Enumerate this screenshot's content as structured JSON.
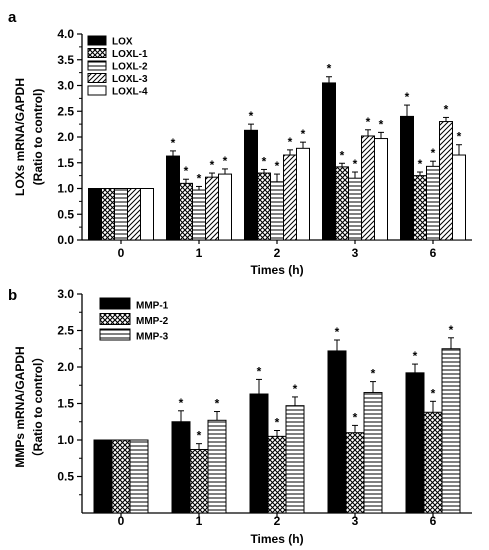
{
  "chart_data": [
    {
      "panel": "a",
      "type": "bar",
      "xlabel": "Times (h)",
      "ylabel_line1": "LOXs mRNA/GAPDH",
      "ylabel_line2": "(Ratio to control)",
      "categories": [
        "0",
        "1",
        "2",
        "3",
        "6"
      ],
      "ylim": [
        0,
        4.0
      ],
      "yticks": [
        "0.0",
        "0.5",
        "1.0",
        "1.5",
        "2.0",
        "2.5",
        "3.0",
        "3.5",
        "4.0"
      ],
      "legend_position": "top-left",
      "series": [
        {
          "name": "LOX",
          "pattern": "solid",
          "values": [
            1.0,
            1.63,
            2.13,
            3.05,
            2.4
          ],
          "errors": [
            0,
            0.1,
            0.12,
            0.12,
            0.22
          ],
          "stars": [
            false,
            true,
            true,
            true,
            true
          ]
        },
        {
          "name": "LOXL-1",
          "pattern": "crosshatch",
          "values": [
            1.0,
            1.1,
            1.3,
            1.42,
            1.25
          ],
          "errors": [
            0,
            0.08,
            0.07,
            0.07,
            0.07
          ],
          "stars": [
            false,
            true,
            true,
            true,
            true
          ]
        },
        {
          "name": "LOXL-2",
          "pattern": "hlines",
          "values": [
            1.0,
            0.97,
            1.13,
            1.2,
            1.43
          ],
          "errors": [
            0,
            0.07,
            0.15,
            0.12,
            0.1
          ],
          "stars": [
            false,
            true,
            true,
            true,
            true
          ]
        },
        {
          "name": "LOXL-3",
          "pattern": "diagonal",
          "values": [
            1.0,
            1.22,
            1.65,
            2.02,
            2.3
          ],
          "errors": [
            0,
            0.08,
            0.1,
            0.12,
            0.08
          ],
          "stars": [
            false,
            true,
            true,
            true,
            true
          ]
        },
        {
          "name": "LOXL-4",
          "pattern": "white",
          "values": [
            1.0,
            1.28,
            1.78,
            1.97,
            1.65
          ],
          "errors": [
            0,
            0.1,
            0.12,
            0.12,
            0.2
          ],
          "stars": [
            false,
            true,
            true,
            true,
            true
          ]
        }
      ],
      "star_symbol": "*"
    },
    {
      "panel": "b",
      "type": "bar",
      "xlabel": "Times (h)",
      "ylabel_line1": "MMPs mRNA/GAPDH",
      "ylabel_line2": "（Ratio to control）",
      "categories": [
        "0",
        "1",
        "2",
        "3",
        "6"
      ],
      "ylim": [
        0,
        3.0
      ],
      "yticks": [
        "0.5",
        "1.0",
        "1.5",
        "2.0",
        "2.5",
        "3.0"
      ],
      "legend_position": "top-left",
      "series": [
        {
          "name": "MMP-1",
          "pattern": "solid",
          "values": [
            1.0,
            1.25,
            1.63,
            2.22,
            1.92
          ],
          "errors": [
            0,
            0.15,
            0.2,
            0.15,
            0.12
          ],
          "stars": [
            false,
            true,
            true,
            true,
            true
          ]
        },
        {
          "name": "MMP-2",
          "pattern": "crosshatch",
          "values": [
            1.0,
            0.87,
            1.05,
            1.1,
            1.38
          ],
          "errors": [
            0,
            0.08,
            0.08,
            0.1,
            0.15
          ],
          "stars": [
            false,
            true,
            true,
            true,
            true
          ]
        },
        {
          "name": "MMP-3",
          "pattern": "hlines",
          "values": [
            1.0,
            1.27,
            1.47,
            1.65,
            2.25
          ],
          "errors": [
            0,
            0.12,
            0.12,
            0.15,
            0.15
          ],
          "stars": [
            false,
            true,
            true,
            true,
            true
          ]
        }
      ],
      "star_symbol": "*"
    }
  ]
}
